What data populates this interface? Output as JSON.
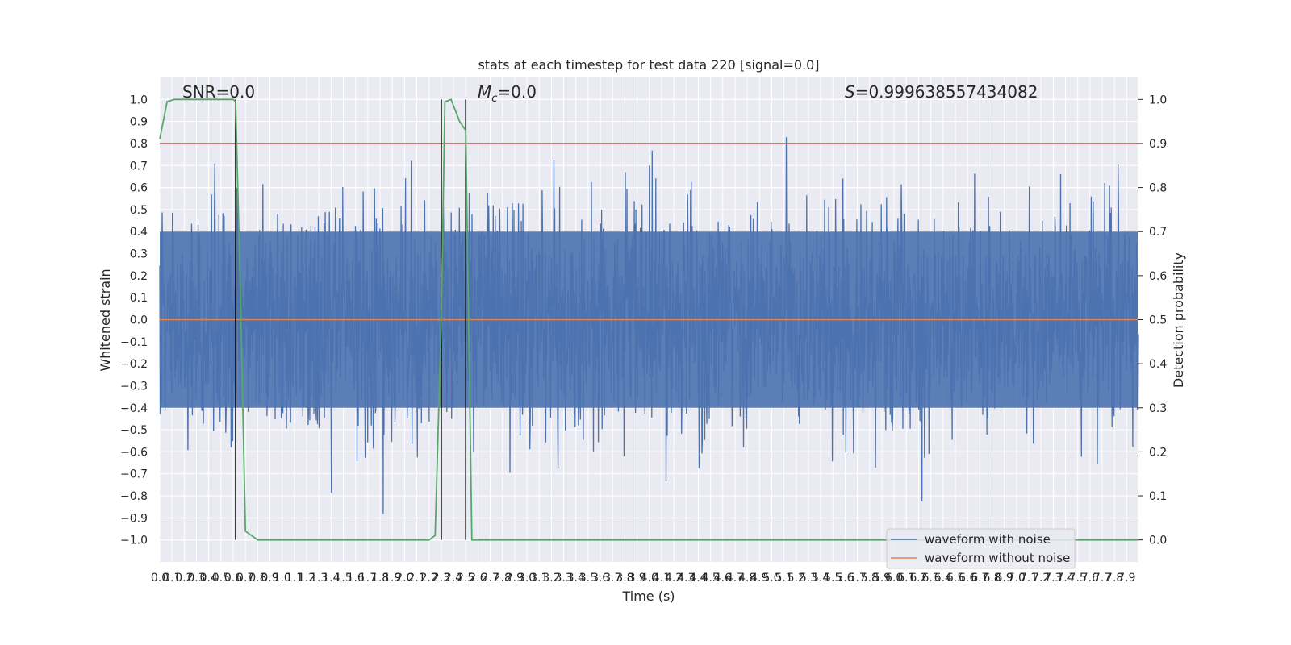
{
  "chart_data": {
    "type": "line",
    "title": "stats at each timestep for test data 220 [signal=0.0]",
    "xlabel": "Time (s)",
    "ylabel_left": "Whitened strain",
    "ylabel_right": "Detection probability",
    "xlim": [
      0.0,
      7.99
    ],
    "ylim_left": [
      -1.1,
      1.1
    ],
    "ylim_right": [
      -0.05,
      1.05
    ],
    "x_tick_step": 0.1,
    "y_left_ticks": [
      -1.0,
      -0.9,
      -0.8,
      -0.7,
      -0.6,
      -0.5,
      -0.4,
      -0.3,
      -0.2,
      -0.1,
      0.0,
      0.1,
      0.2,
      0.3,
      0.4,
      0.5,
      0.6,
      0.7,
      0.8,
      0.9,
      1.0
    ],
    "y_right_ticks": [
      0.0,
      0.1,
      0.2,
      0.3,
      0.4,
      0.5,
      0.6,
      0.7,
      0.8,
      0.9,
      1.0
    ],
    "grid": true,
    "legend_position": "lower right",
    "annotations": {
      "snr": "SNR=0.0",
      "mc_symbol": "M",
      "mc_sub": "c",
      "mc_value": "=0.0",
      "s_symbol": "S",
      "s_value": "=0.999638557434082"
    },
    "threshold_line": {
      "axis": "right",
      "y": 0.9,
      "color": "#c44e52"
    },
    "vertical_lines": [
      0.62,
      2.3,
      2.5
    ],
    "series": [
      {
        "name": "waveform with noise",
        "axis": "left",
        "color": "#4c72b0",
        "kind": "noise",
        "y_range_approx": [
          -1.0,
          1.0
        ]
      },
      {
        "name": "waveform without noise",
        "axis": "left",
        "color": "#dd8452",
        "x": [
          0.0,
          7.99
        ],
        "y": [
          0.0,
          0.0
        ]
      },
      {
        "name": "detection probability",
        "axis": "right",
        "color": "#55a868",
        "x": [
          0.0,
          0.06,
          0.12,
          0.2,
          0.3,
          0.4,
          0.5,
          0.6,
          0.62,
          0.66,
          0.7,
          0.75,
          0.8,
          1.0,
          1.5,
          2.0,
          2.2,
          2.25,
          2.3,
          2.33,
          2.38,
          2.45,
          2.5,
          2.55,
          2.6,
          3.0,
          4.0,
          5.0,
          6.0,
          7.0,
          7.99
        ],
        "y": [
          0.91,
          0.995,
          1.0,
          1.0,
          1.0,
          1.0,
          1.0,
          1.0,
          0.995,
          0.55,
          0.02,
          0.01,
          0.0,
          0.0,
          0.0,
          0.0,
          0.0,
          0.01,
          0.5,
          0.995,
          1.0,
          0.95,
          0.93,
          0.0,
          0.0,
          0.0,
          0.0,
          0.0,
          0.0,
          0.0,
          0.0
        ]
      }
    ]
  }
}
